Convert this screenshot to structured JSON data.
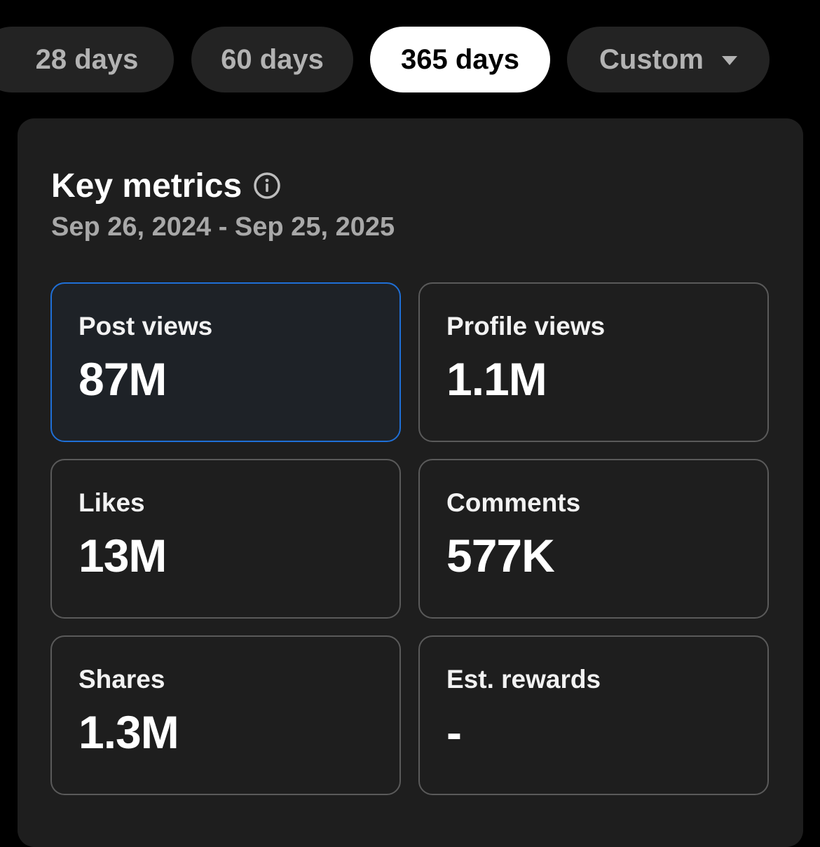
{
  "tabs": [
    {
      "label": "28 days"
    },
    {
      "label": "60 days"
    },
    {
      "label": "365 days"
    },
    {
      "label": "Custom"
    }
  ],
  "active_tab": "365 days",
  "metrics_section": {
    "title": "Key metrics",
    "date_range": "Sep 26, 2024 - Sep 25, 2025"
  },
  "metrics": [
    {
      "label": "Post views",
      "value": "87M"
    },
    {
      "label": "Profile views",
      "value": "1.1M"
    },
    {
      "label": "Likes",
      "value": "13M"
    },
    {
      "label": "Comments",
      "value": "577K"
    },
    {
      "label": "Shares",
      "value": "1.3M"
    },
    {
      "label": "Est. rewards",
      "value": "-"
    }
  ],
  "colors": {
    "background": "#000000",
    "panel": "#1e1e1e",
    "tab_inactive": "#232323",
    "tab_active": "#ffffff",
    "selected_border": "#1f6fd6",
    "card_border": "#5a5a5a"
  },
  "icons": {
    "info": "info-circle-icon",
    "dropdown": "chevron-down-icon"
  }
}
